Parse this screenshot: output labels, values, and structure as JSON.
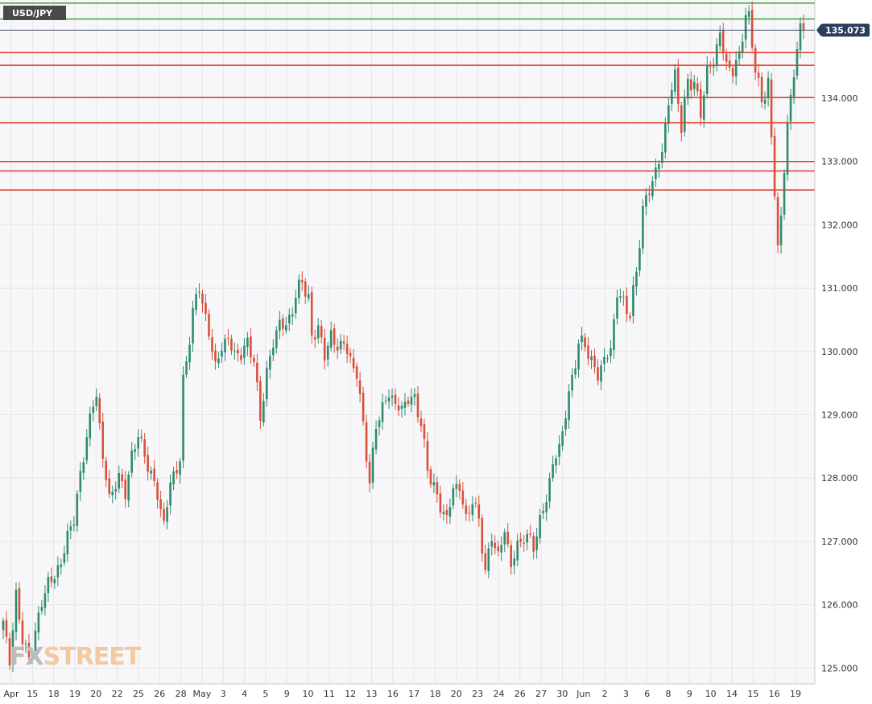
{
  "symbol": "USD/JPY",
  "logo": {
    "part1": "FX",
    "part2": "STREET",
    "color1": "#bcbcbc",
    "color2": "#f5c9a0"
  },
  "colors": {
    "bull": "#2e8b6e",
    "bear": "#d9503a",
    "resistance": "#e0392b",
    "support_green": "#3aa63a",
    "price_line": "#3a4a66",
    "price_tag": "#2c3e5c",
    "plot_bg": "#f7f7f9",
    "grid": "#e6e6ea"
  },
  "chart_data": {
    "type": "candlestick",
    "title": "",
    "xlabel": "",
    "ylabel": "",
    "ylim": [
      124.75,
      135.55
    ],
    "y_ticks": [
      "125.000",
      "126.000",
      "127.000",
      "128.000",
      "129.000",
      "130.000",
      "131.000",
      "132.000",
      "133.000",
      "134.000"
    ],
    "x_tick_labels": [
      "Apr",
      "15",
      "18",
      "19",
      "20",
      "22",
      "25",
      "26",
      "28",
      "May",
      "3",
      "4",
      "5",
      "9",
      "10",
      "11",
      "12",
      "13",
      "16",
      "17",
      "18",
      "20",
      "23",
      "24",
      "26",
      "27",
      "30",
      "Jun",
      "2",
      "3",
      "6",
      "8",
      "9",
      "10",
      "14",
      "15",
      "16",
      "19"
    ],
    "current_price": "135.073",
    "horizontal_levels": {
      "green": [
        135.5,
        135.25
      ],
      "red": [
        134.72,
        134.52,
        134.01,
        133.61,
        133.0,
        132.85,
        132.55
      ]
    },
    "anchors": [
      [
        0,
        125.7
      ],
      [
        2,
        125.15
      ],
      [
        4,
        126.1
      ],
      [
        6,
        125.5
      ],
      [
        8,
        125.1
      ],
      [
        10,
        125.6
      ],
      [
        14,
        126.4
      ],
      [
        16,
        126.4
      ],
      [
        18,
        126.7
      ],
      [
        22,
        127.4
      ],
      [
        24,
        128.0
      ],
      [
        26,
        128.7
      ],
      [
        29,
        129.35
      ],
      [
        31,
        128.3
      ],
      [
        33,
        127.7
      ],
      [
        36,
        128.0
      ],
      [
        38,
        127.8
      ],
      [
        40,
        128.3
      ],
      [
        42,
        128.75
      ],
      [
        44,
        128.3
      ],
      [
        46,
        128.1
      ],
      [
        48,
        127.7
      ],
      [
        50,
        127.3
      ],
      [
        52,
        127.9
      ],
      [
        55,
        128.3
      ],
      [
        56,
        129.5
      ],
      [
        59,
        130.6
      ],
      [
        61,
        131.05
      ],
      [
        63,
        130.5
      ],
      [
        66,
        129.8
      ],
      [
        70,
        130.25
      ],
      [
        72,
        129.9
      ],
      [
        76,
        130.1
      ],
      [
        78,
        129.9
      ],
      [
        80,
        128.9
      ],
      [
        82,
        129.7
      ],
      [
        84,
        130.1
      ],
      [
        86,
        130.5
      ],
      [
        88,
        130.35
      ],
      [
        90,
        130.7
      ],
      [
        92,
        131.0
      ],
      [
        93,
        131.15
      ],
      [
        95,
        130.8
      ],
      [
        96,
        130.2
      ],
      [
        98,
        130.4
      ],
      [
        100,
        129.9
      ],
      [
        102,
        130.3
      ],
      [
        104,
        130.0
      ],
      [
        106,
        130.2
      ],
      [
        108,
        129.8
      ],
      [
        110,
        129.7
      ],
      [
        112,
        128.8
      ],
      [
        114,
        127.95
      ],
      [
        116,
        128.8
      ],
      [
        118,
        129.15
      ],
      [
        120,
        129.3
      ],
      [
        122,
        129.2
      ],
      [
        124,
        129.05
      ],
      [
        126,
        129.3
      ],
      [
        128,
        129.2
      ],
      [
        130,
        128.9
      ],
      [
        132,
        128.1
      ],
      [
        134,
        127.9
      ],
      [
        136,
        127.5
      ],
      [
        138,
        127.4
      ],
      [
        140,
        127.8
      ],
      [
        142,
        127.9
      ],
      [
        144,
        127.3
      ],
      [
        146,
        127.7
      ],
      [
        148,
        127.3
      ],
      [
        150,
        126.55
      ],
      [
        152,
        127.05
      ],
      [
        154,
        126.8
      ],
      [
        156,
        127.15
      ],
      [
        158,
        126.65
      ],
      [
        160,
        126.9
      ],
      [
        162,
        127.1
      ],
      [
        165,
        126.95
      ],
      [
        167,
        127.3
      ],
      [
        169,
        127.7
      ],
      [
        171,
        128.2
      ],
      [
        173,
        128.5
      ],
      [
        175,
        129.0
      ],
      [
        177,
        129.6
      ],
      [
        179,
        130.1
      ],
      [
        181,
        130.15
      ],
      [
        183,
        129.8
      ],
      [
        185,
        129.65
      ],
      [
        187,
        129.85
      ],
      [
        189,
        130.05
      ],
      [
        191,
        130.9
      ],
      [
        193,
        130.8
      ],
      [
        195,
        130.55
      ],
      [
        197,
        131.3
      ],
      [
        199,
        132.2
      ],
      [
        201,
        132.6
      ],
      [
        203,
        132.8
      ],
      [
        205,
        133.2
      ],
      [
        207,
        133.9
      ],
      [
        209,
        134.4
      ],
      [
        211,
        133.5
      ],
      [
        213,
        134.3
      ],
      [
        215,
        134.2
      ],
      [
        217,
        133.8
      ],
      [
        219,
        134.4
      ],
      [
        221,
        134.6
      ],
      [
        223,
        135.0
      ],
      [
        225,
        134.55
      ],
      [
        227,
        134.4
      ],
      [
        229,
        134.7
      ],
      [
        231,
        135.3
      ],
      [
        232,
        135.25
      ],
      [
        234,
        134.5
      ],
      [
        236,
        133.9
      ],
      [
        238,
        134.3
      ],
      [
        239,
        133.3
      ],
      [
        240,
        132.5
      ],
      [
        241,
        131.7
      ],
      [
        242,
        132.1
      ],
      [
        244,
        133.6
      ],
      [
        246,
        134.4
      ],
      [
        247,
        134.8
      ],
      [
        248,
        135.07
      ]
    ]
  }
}
